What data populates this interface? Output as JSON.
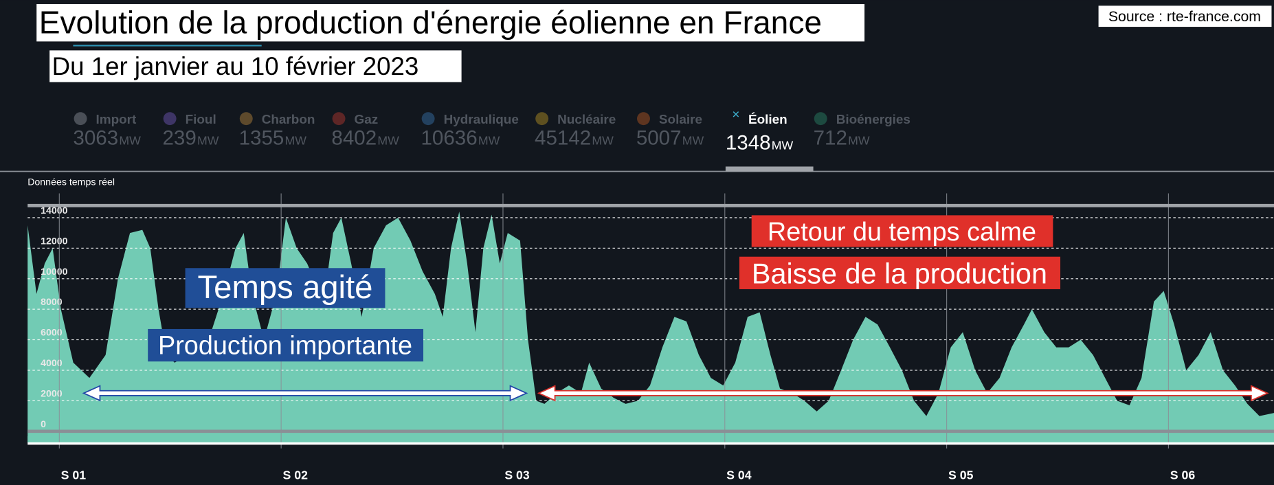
{
  "chart_data": {
    "type": "area",
    "title": "Evolution de la production d'énergie éolienne en France",
    "subtitle": "Du 1er janvier au 10 février 2023",
    "source": "Source : rte-france.com",
    "plot_label": "Données temps réel",
    "indicators": [
      {
        "name": "Import",
        "value": 3063,
        "unit": "MW",
        "color": "#4a4f57"
      },
      {
        "name": "Fioul",
        "value": 239,
        "unit": "MW",
        "color": "#3e3566"
      },
      {
        "name": "Charbon",
        "value": 1355,
        "unit": "MW",
        "color": "#5e4a2c"
      },
      {
        "name": "Gaz",
        "value": 8402,
        "unit": "MW",
        "color": "#5e2626"
      },
      {
        "name": "Hydraulique",
        "value": 10636,
        "unit": "MW",
        "color": "#23415f"
      },
      {
        "name": "Nucléaire",
        "value": 45142,
        "unit": "MW",
        "color": "#5e5020"
      },
      {
        "name": "Solaire",
        "value": 5007,
        "unit": "MW",
        "color": "#5e3520"
      },
      {
        "name": "Éolien",
        "value": 1348,
        "unit": "MW",
        "color": "#3fb6d6"
      },
      {
        "name": "Bioénergies",
        "value": 712,
        "unit": "MW",
        "color": "#1d4a40"
      }
    ],
    "active_indicator": 7,
    "annotations": [
      "Temps agité",
      "Production importante",
      "Retour du temps calme",
      "Baisse de la production"
    ],
    "color": "#72cbb4",
    "x": [
      0,
      0.28,
      0.54,
      0.79,
      1.05,
      1.44,
      1.95,
      2.46,
      2.85,
      3.23,
      3.62,
      3.87,
      4.13,
      4.38,
      4.64,
      5.03,
      5.41,
      5.79,
      6.18,
      6.56,
      6.82,
      7.08,
      7.46,
      7.85,
      8.15,
      8.49,
      8.82,
      9.13,
      9.38,
      9.64,
      9.9,
      10.21,
      10.54,
      10.92,
      11.31,
      11.69,
      12.08,
      12.46,
      12.85,
      13.1,
      13.36,
      13.62,
      13.87,
      14.13,
      14.38,
      14.64,
      14.9,
      15.15,
      15.54,
      15.79,
      16.05,
      16.31,
      16.69,
      17.08,
      17.46,
      17.72,
      18.1,
      18.49,
      18.87,
      19.26,
      19.64,
      20.03,
      20.41,
      20.79,
      21.18,
      21.56,
      21.95,
      22.33,
      22.72,
      23.1,
      23.44,
      23.74,
      24.13,
      24.51,
      24.9,
      25.28,
      25.67,
      26.05,
      26.44,
      26.82,
      27.21,
      27.59,
      27.97,
      28.36,
      28.74,
      29.13,
      29.51,
      29.9,
      30.28,
      30.67,
      31.05,
      31.44,
      31.69,
      32.08,
      32.46,
      32.85,
      33.23,
      33.62,
      34,
      34.38,
      34.77,
      35.15,
      35.54,
      35.85,
      36.18,
      36.56,
      36.95,
      37.33,
      37.72,
      38.1,
      38.49,
      38.87,
      39.33
    ],
    "values": [
      13500,
      9000,
      11000,
      12000,
      8000,
      4500,
      3500,
      5000,
      10000,
      13000,
      13200,
      12000,
      8000,
      5000,
      4500,
      5000,
      6000,
      6500,
      9000,
      12000,
      13000,
      9000,
      6000,
      9000,
      14000,
      12000,
      11000,
      9500,
      9000,
      13000,
      14000,
      11000,
      7500,
      12000,
      13500,
      14000,
      12500,
      10500,
      9000,
      7500,
      12000,
      14400,
      11000,
      6500,
      12000,
      14200,
      11000,
      13000,
      12500,
      6000,
      2000,
      1800,
      2500,
      3000,
      2500,
      4500,
      2800,
      2200,
      1800,
      2000,
      3000,
      5500,
      7500,
      7200,
      5000,
      3500,
      3000,
      4500,
      7500,
      7800,
      5000,
      2800,
      2500,
      2000,
      1300,
      2000,
      4000,
      6000,
      7500,
      7000,
      5500,
      4000,
      2000,
      1000,
      2500,
      5500,
      6500,
      4000,
      2500,
      3500,
      5500,
      7000,
      8000,
      6500,
      5500,
      5500,
      6000,
      5000,
      3500,
      2000,
      1700,
      3500,
      8500,
      9200,
      7000,
      4000,
      5000,
      6500,
      4000,
      3000,
      1800,
      1000,
      1200
    ],
    "xlim": [
      0,
      39.33
    ],
    "xticks": [
      {
        "value": 1,
        "label": "S 01"
      },
      {
        "value": 8,
        "label": "S 02"
      },
      {
        "value": 15,
        "label": "S 03"
      },
      {
        "value": 22,
        "label": "S 04"
      },
      {
        "value": 29,
        "label": "S 05"
      },
      {
        "value": 36,
        "label": "S 06"
      }
    ],
    "ylim": [
      -750,
      14850
    ],
    "yticks": [
      0,
      2000,
      4000,
      6000,
      8000,
      10000,
      12000,
      14000
    ],
    "grid": true
  }
}
